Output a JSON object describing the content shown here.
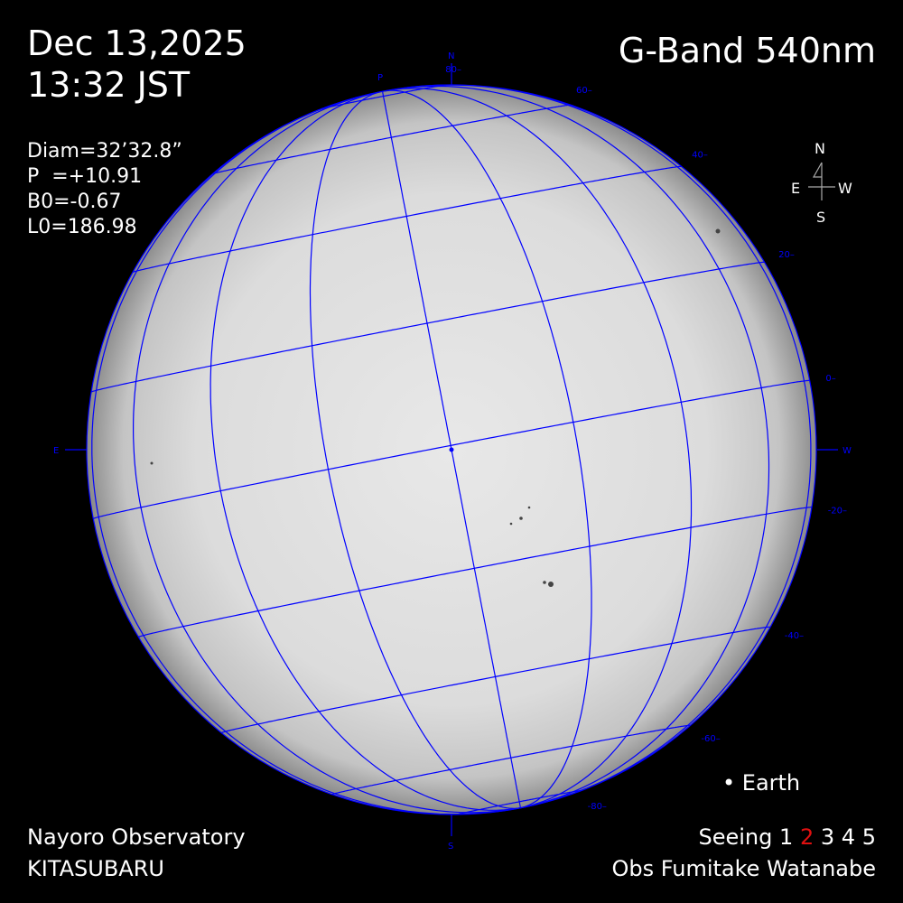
{
  "header": {
    "date": "Dec 13,2025",
    "time": "13:32 JST",
    "band": "G-Band 540nm"
  },
  "parameters": {
    "diam": "Diam=32’32.8”",
    "p": "P  =+10.91",
    "b0": "B0=-0.67",
    "l0": "L0=186.98"
  },
  "compass": {
    "n": "N",
    "e": "E",
    "w": "W",
    "s": "S"
  },
  "disk_labels": {
    "n": "N",
    "s": "S",
    "e": "E",
    "w": "W",
    "pole": "P"
  },
  "latitude_labels": [
    "80",
    "60",
    "40",
    "20",
    "0",
    "-20",
    "-40",
    "-60",
    "-80"
  ],
  "footer": {
    "observatory": "Nayoro Observatory",
    "telescope": "KITASUBARU",
    "earth_marker": "• Earth",
    "seeing_label": "Seeing",
    "seeing_values": [
      "1",
      "2",
      "3",
      "4",
      "5"
    ],
    "seeing_selected": "2",
    "observer": "Obs Fumitake Watanabe"
  },
  "colors": {
    "grid": "#0000ff",
    "selected_seeing": "#e01010",
    "text": "#ffffff"
  },
  "solar": {
    "p_angle_deg": 10.91,
    "b0_deg": -0.67,
    "grid_step_deg": 20
  }
}
